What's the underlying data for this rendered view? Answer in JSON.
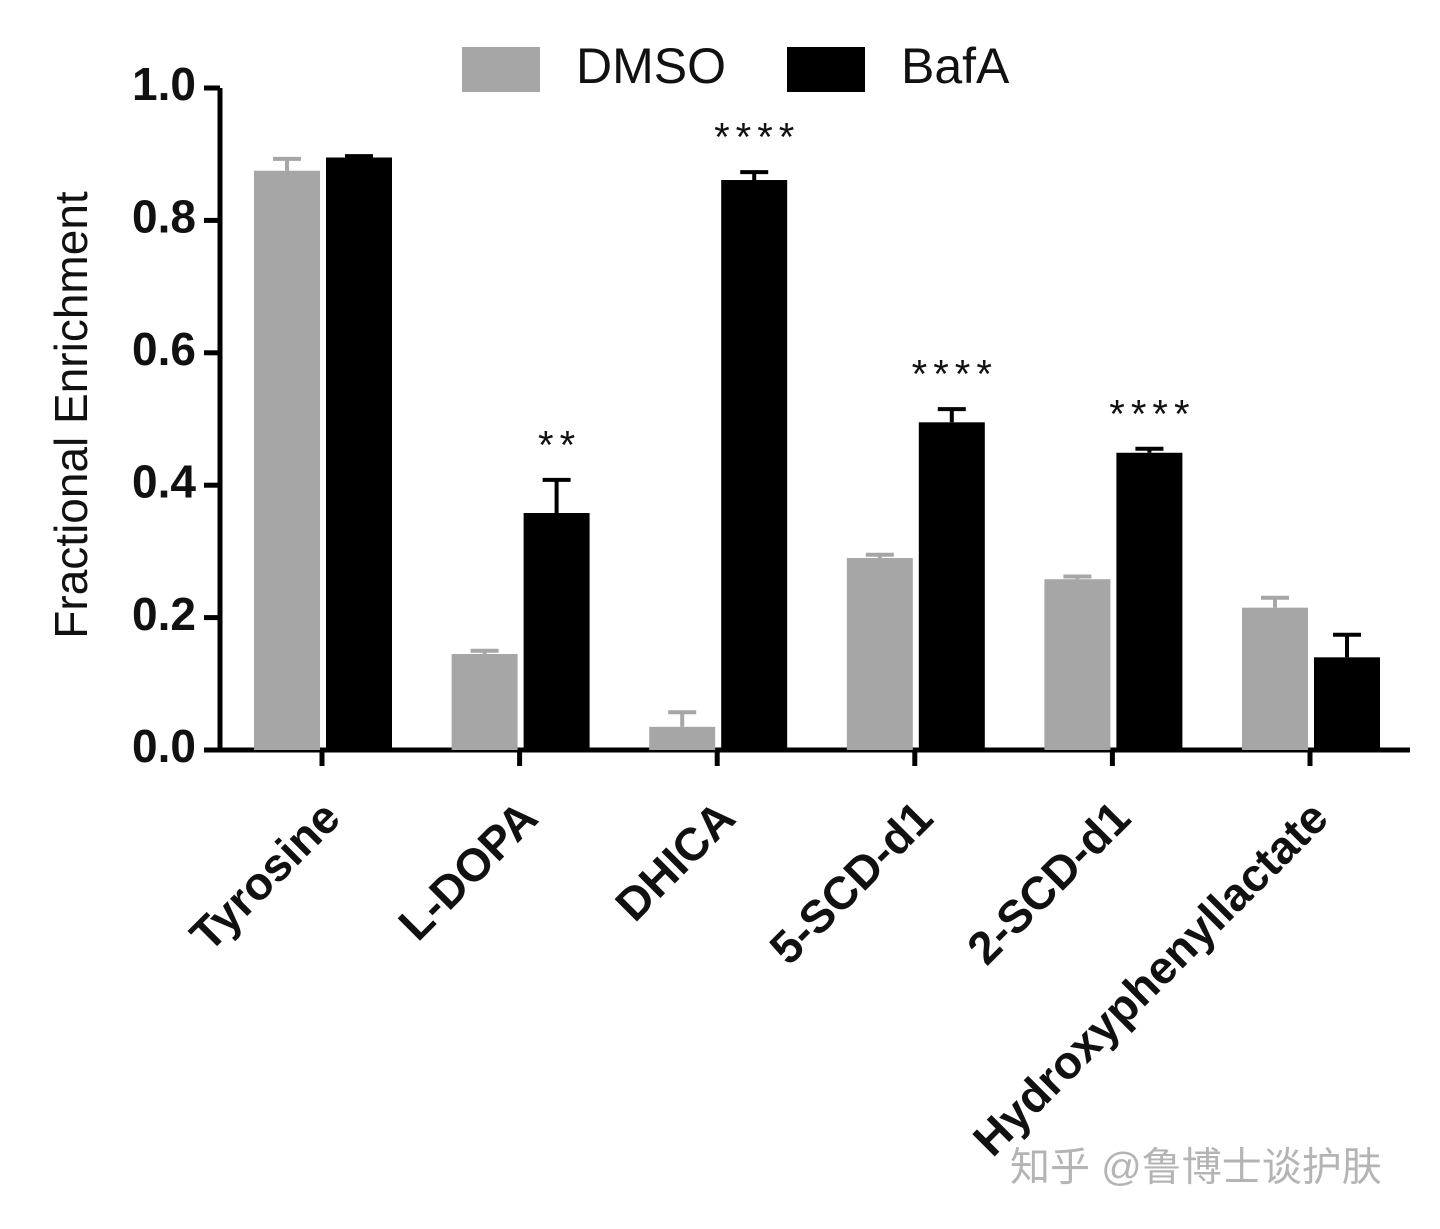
{
  "chart_data": {
    "type": "bar",
    "y_label": "Fractional Enrichment",
    "categories": [
      "Tyrosine",
      "L-DOPA",
      "DHICA",
      "5-SCD-d1",
      "2-SCD-d1",
      "Hydroxyphenyllactate"
    ],
    "series": [
      {
        "name": "DMSO",
        "color": "#a6a6a6",
        "values": [
          0.875,
          0.145,
          0.035,
          0.29,
          0.258,
          0.215
        ],
        "errors": [
          0.018,
          0.005,
          0.022,
          0.005,
          0.004,
          0.015
        ]
      },
      {
        "name": "BafA",
        "color": "#000000",
        "values": [
          0.895,
          0.358,
          0.861,
          0.495,
          0.449,
          0.14
        ],
        "errors": [
          0.002,
          0.05,
          0.012,
          0.02,
          0.006,
          0.034
        ]
      }
    ],
    "significance": [
      null,
      "**",
      "****",
      "****",
      "****",
      null
    ],
    "ylim": [
      0,
      1
    ],
    "yticks": [
      {
        "value": 0,
        "label": "0.0"
      },
      0.2,
      0.4,
      0.6,
      0.8,
      {
        "value": 1,
        "label": "1.0"
      }
    ],
    "legend": "top",
    "watermark": "知乎 @鲁博士谈护肤"
  }
}
